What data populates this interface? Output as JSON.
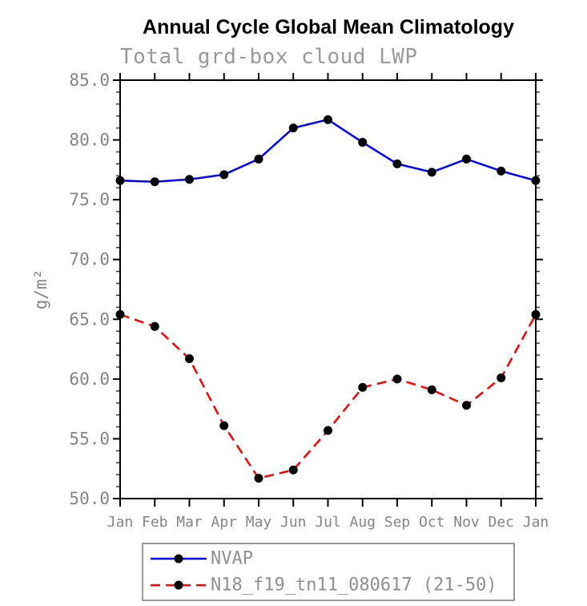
{
  "chart_data": {
    "type": "line",
    "title": "Annual Cycle Global Mean Climatology",
    "subtitle": "Total grd-box cloud LWP",
    "ylabel": "g/m²",
    "x_categories": [
      "Jan",
      "Feb",
      "Mar",
      "Apr",
      "May",
      "Jun",
      "Jul",
      "Aug",
      "Sep",
      "Oct",
      "Nov",
      "Dec",
      "Jan"
    ],
    "ylim": [
      50.0,
      85.0
    ],
    "y_major_tick_step": 5,
    "y_minor_tick_step": 1,
    "y_tick_labels": [
      "50.0",
      "55.0",
      "60.0",
      "65.0",
      "70.0",
      "75.0",
      "80.0",
      "85.0"
    ],
    "grid": false,
    "legend_position": "bottom-left",
    "series": [
      {
        "name": "NVAP",
        "line_color": "#0000ff",
        "line_style": "solid",
        "marker": "filled-circle",
        "marker_color": "#000000",
        "values": [
          76.6,
          76.5,
          76.7,
          77.1,
          78.4,
          81.0,
          81.7,
          79.8,
          78.0,
          77.3,
          78.4,
          77.4,
          76.6
        ]
      },
      {
        "name": "N18_f19_tn11_080617 (21-50)",
        "line_color": "#ff0000",
        "line_style": "dashed",
        "marker": "filled-circle",
        "marker_color": "#000000",
        "values": [
          65.4,
          64.4,
          61.7,
          56.1,
          51.7,
          52.4,
          55.7,
          59.3,
          60.0,
          59.1,
          57.8,
          60.1,
          65.4
        ]
      }
    ]
  },
  "colors": {
    "axis": "#000000",
    "minor_tick": "#3a3a3a",
    "title_text": "#000000",
    "subtitle_text": "#9a9a9a",
    "tick_label_text": "#848484",
    "legend_text": "#8f8f8f",
    "legend_border": "#777777",
    "nvap_line": "#0000ff",
    "n18_line": "#ff0000",
    "marker": "#000000"
  }
}
